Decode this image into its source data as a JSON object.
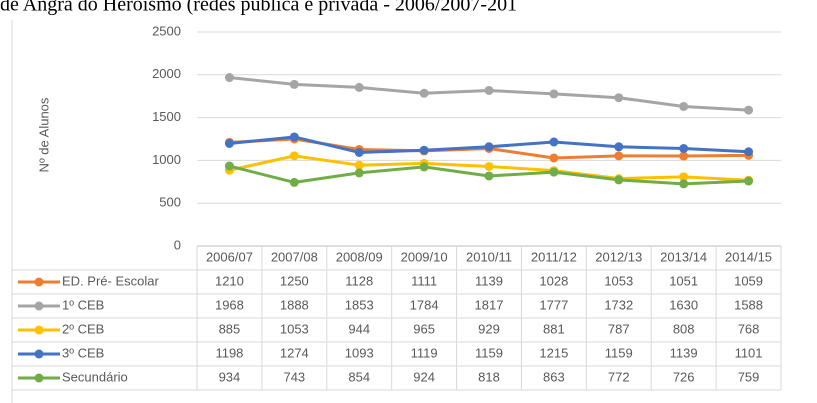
{
  "chart_data": {
    "type": "line",
    "title": "de Angra do Heroísmo (redes pública e privada - 2006/2007-201",
    "y_label": "Nº de Alunos",
    "categories": [
      "2006/07",
      "2007/08",
      "2008/09",
      "2009/10",
      "2010/11",
      "2011/12",
      "2012/13",
      "2013/14",
      "2014/15"
    ],
    "series": [
      {
        "name": "ED. Pré- Escolar",
        "color": "#ed7d31",
        "values": [
          1210,
          1250,
          1128,
          1111,
          1139,
          1028,
          1053,
          1051,
          1059
        ]
      },
      {
        "name": "1º CEB",
        "color": "#a5a5a5",
        "values": [
          1968,
          1888,
          1853,
          1784,
          1817,
          1777,
          1732,
          1630,
          1588
        ]
      },
      {
        "name": "2º CEB",
        "color": "#ffc000",
        "values": [
          885,
          1053,
          944,
          965,
          929,
          881,
          787,
          808,
          768
        ]
      },
      {
        "name": "3º CEB",
        "color": "#4472c4",
        "values": [
          1198,
          1274,
          1093,
          1119,
          1159,
          1215,
          1159,
          1139,
          1101
        ]
      },
      {
        "name": "Secundário",
        "color": "#70ad47",
        "values": [
          934,
          743,
          854,
          924,
          818,
          863,
          772,
          726,
          759
        ]
      }
    ],
    "ylim": [
      0,
      2500
    ],
    "yticks": [
      0,
      500,
      1000,
      1500,
      2000,
      2500
    ],
    "grid": true,
    "data_table": true
  }
}
